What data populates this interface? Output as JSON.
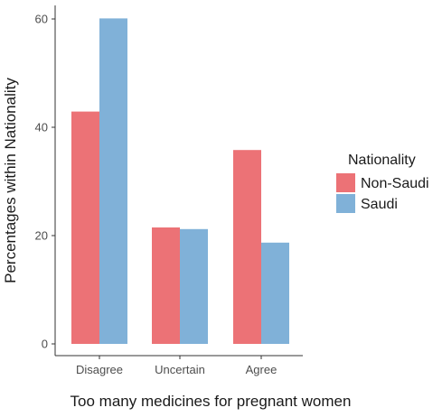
{
  "chart_data": {
    "type": "bar",
    "categories": [
      "Disagree",
      "Uncertain",
      "Agree"
    ],
    "series": [
      {
        "name": "Non-Saudi",
        "values": [
          42.9,
          21.5,
          35.8
        ],
        "color": "#ec7276"
      },
      {
        "name": "Saudi",
        "values": [
          60.1,
          21.2,
          18.7
        ],
        "color": "#80b1d8"
      }
    ],
    "xlabel": "Too many medicines for pregnant women",
    "ylabel": "Percentages within Nationality",
    "ylim": [
      0,
      63
    ],
    "yticks": [
      0,
      20,
      40,
      60
    ],
    "legend_title": "Nationality",
    "legend_position": "right",
    "grid": false
  }
}
